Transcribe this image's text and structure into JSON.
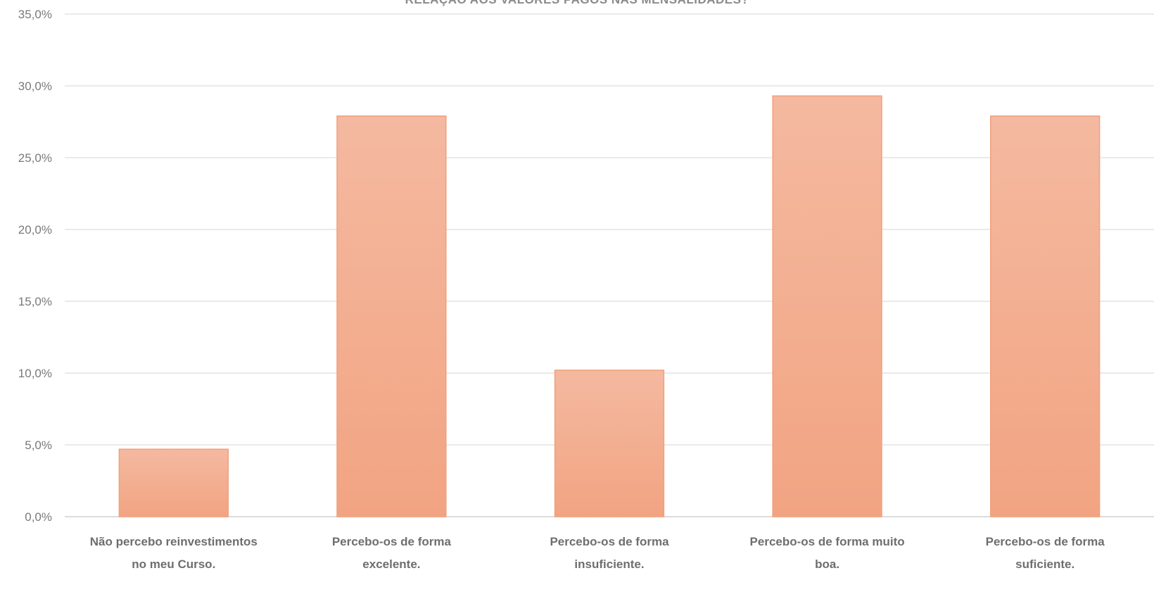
{
  "chart_data": {
    "type": "bar",
    "title": "RELAÇÃO AOS VALORES PAGOS NAS MENSALIDADES?",
    "categories": [
      [
        "Não percebo reinvestimentos",
        "no meu Curso."
      ],
      [
        "Percebo-os de forma",
        "excelente."
      ],
      [
        "Percebo-os de forma",
        "insuficiente."
      ],
      [
        "Percebo-os de forma muito",
        "boa."
      ],
      [
        "Percebo-os de forma",
        "suficiente."
      ]
    ],
    "values": [
      4.7,
      27.9,
      10.2,
      29.3,
      27.9
    ],
    "ylim": [
      0,
      35
    ],
    "yticks": [
      "0,0%",
      "5,0%",
      "10,0%",
      "15,0%",
      "20,0%",
      "25,0%",
      "30,0%",
      "35,0%"
    ],
    "xlabel": "",
    "ylabel": "",
    "grid": true,
    "legend": "none",
    "colors": {
      "bar_top": "#f4b9a0",
      "bar_bottom": "#f2a482",
      "bar_edge": "#f0a07c",
      "grid": "#e3e3e3"
    }
  }
}
